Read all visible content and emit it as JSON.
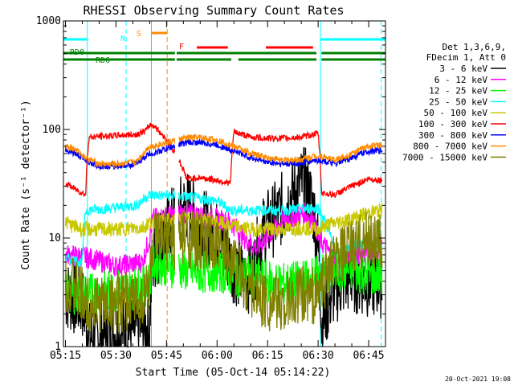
{
  "chart_data": {
    "type": "line",
    "title": "RHESSI Observing Summary Count Rates",
    "xlabel": "Start Time (05-Oct-14 05:14:22)",
    "ylabel": "Count Rate (s⁻¹ detector⁻¹)",
    "x_ticks": [
      "05:15",
      "05:30",
      "05:45",
      "06:00",
      "06:15",
      "06:30",
      "06:45"
    ],
    "x_tick_minutes": [
      15,
      30,
      45,
      60,
      75,
      90,
      105
    ],
    "xlim_minutes": [
      14.4,
      110
    ],
    "y_scale": "log",
    "ylim": [
      1,
      1000
    ],
    "y_ticks": [
      "1",
      "10",
      "100",
      "1000"
    ],
    "legend_header": [
      "Det 1,3,6,9,",
      "FDecim 1, Att 0"
    ],
    "series": [
      {
        "name": "3 - 6 keV",
        "color": "#000000",
        "points": [
          [
            15,
            3
          ],
          [
            20,
            2.5
          ],
          [
            22,
            1.2
          ],
          [
            40,
            1.5
          ],
          [
            41,
            6
          ],
          [
            51,
            20
          ],
          [
            54,
            15
          ],
          [
            57,
            12
          ],
          [
            60,
            10
          ],
          [
            64,
            6
          ],
          [
            68,
            4
          ],
          [
            71,
            5
          ],
          [
            74,
            12
          ],
          [
            78,
            16
          ],
          [
            81,
            22
          ],
          [
            84,
            30
          ],
          [
            86,
            32
          ],
          [
            88,
            22
          ],
          [
            90,
            8
          ],
          [
            91,
            1.5
          ],
          [
            95,
            3.5
          ],
          [
            100,
            4.5
          ],
          [
            105,
            4
          ],
          [
            109,
            4
          ]
        ]
      },
      {
        "name": "6 - 12 keV",
        "color": "#ff00ff",
        "points": [
          [
            15,
            7
          ],
          [
            20,
            6.8
          ],
          [
            30,
            5.5
          ],
          [
            38,
            6
          ],
          [
            40,
            10
          ],
          [
            41,
            15
          ],
          [
            51,
            17
          ],
          [
            55,
            16
          ],
          [
            60,
            15
          ],
          [
            64,
            14
          ],
          [
            68,
            10
          ],
          [
            72,
            8
          ],
          [
            76,
            11
          ],
          [
            80,
            15
          ],
          [
            84,
            16
          ],
          [
            86,
            17
          ],
          [
            89,
            14
          ],
          [
            90,
            10
          ],
          [
            95,
            6
          ],
          [
            100,
            7
          ],
          [
            105,
            7.5
          ],
          [
            109,
            8
          ]
        ]
      },
      {
        "name": "12 - 25 keV",
        "color": "#00ff00",
        "points": [
          [
            15,
            3.2
          ],
          [
            20,
            3
          ],
          [
            30,
            3.3
          ],
          [
            38,
            3.5
          ],
          [
            40,
            4
          ],
          [
            41,
            6
          ],
          [
            51,
            5
          ],
          [
            55,
            4.8
          ],
          [
            60,
            5
          ],
          [
            65,
            4.5
          ],
          [
            70,
            4.5
          ],
          [
            75,
            4
          ],
          [
            80,
            3.8
          ],
          [
            85,
            4
          ],
          [
            90,
            4.5
          ],
          [
            95,
            5
          ],
          [
            100,
            5
          ],
          [
            105,
            4.5
          ],
          [
            109,
            4.5
          ]
        ]
      },
      {
        "name": "25 - 50 keV",
        "color": "#00ffff",
        "points": [
          [
            15,
            6.5
          ],
          [
            20,
            6
          ],
          [
            21,
            18
          ],
          [
            30,
            19
          ],
          [
            36,
            20
          ],
          [
            40,
            25
          ],
          [
            41,
            25
          ],
          [
            51,
            24
          ],
          [
            55,
            23
          ],
          [
            60,
            22
          ],
          [
            64,
            18
          ],
          [
            70,
            18
          ],
          [
            75,
            18
          ],
          [
            80,
            18
          ],
          [
            85,
            18.5
          ],
          [
            90,
            19
          ],
          [
            95,
            7
          ],
          [
            100,
            8.5
          ],
          [
            105,
            9
          ],
          [
            109,
            9
          ]
        ]
      },
      {
        "name": "50 - 100 keV",
        "color": "#c8c800",
        "points": [
          [
            15,
            14
          ],
          [
            17,
            13
          ],
          [
            20,
            12
          ],
          [
            30,
            12
          ],
          [
            38,
            12.5
          ],
          [
            40,
            14
          ],
          [
            41,
            14
          ],
          [
            51,
            15
          ],
          [
            55,
            15
          ],
          [
            60,
            14
          ],
          [
            64,
            13
          ],
          [
            70,
            12
          ],
          [
            75,
            12
          ],
          [
            80,
            12
          ],
          [
            85,
            12.5
          ],
          [
            90,
            12
          ],
          [
            92,
            13
          ],
          [
            96,
            14
          ],
          [
            100,
            15
          ],
          [
            105,
            17
          ],
          [
            109,
            18
          ]
        ]
      },
      {
        "name": "100 - 300 keV",
        "color": "#ff0000",
        "points": [
          [
            15,
            32
          ],
          [
            18,
            28
          ],
          [
            21,
            25
          ],
          [
            22,
            85
          ],
          [
            30,
            88
          ],
          [
            36,
            90
          ],
          [
            39,
            98
          ],
          [
            40,
            110
          ],
          [
            41,
            110
          ],
          [
            51,
            35
          ],
          [
            55,
            36
          ],
          [
            60,
            34
          ],
          [
            64,
            32
          ],
          [
            65,
            95
          ],
          [
            70,
            85
          ],
          [
            75,
            83
          ],
          [
            80,
            83
          ],
          [
            85,
            85
          ],
          [
            90,
            92
          ],
          [
            91,
            26
          ],
          [
            95,
            25
          ],
          [
            100,
            30
          ],
          [
            105,
            35
          ],
          [
            109,
            34
          ]
        ]
      },
      {
        "name": "300 - 800 keV",
        "color": "#0000ff",
        "points": [
          [
            15,
            65
          ],
          [
            18,
            60
          ],
          [
            21,
            52
          ],
          [
            25,
            46
          ],
          [
            30,
            46
          ],
          [
            36,
            48
          ],
          [
            40,
            60
          ],
          [
            41,
            60
          ],
          [
            51,
            76
          ],
          [
            55,
            76
          ],
          [
            60,
            72
          ],
          [
            64,
            65
          ],
          [
            70,
            55
          ],
          [
            75,
            50
          ],
          [
            80,
            48
          ],
          [
            85,
            49
          ],
          [
            89,
            52
          ],
          [
            91,
            52
          ],
          [
            95,
            48
          ],
          [
            100,
            55
          ],
          [
            105,
            63
          ],
          [
            109,
            64
          ]
        ]
      },
      {
        "name": "800 - 7000 keV",
        "color": "#ff8c00",
        "points": [
          [
            15,
            72
          ],
          [
            18,
            65
          ],
          [
            21,
            55
          ],
          [
            25,
            48
          ],
          [
            30,
            48
          ],
          [
            36,
            50
          ],
          [
            40,
            70
          ],
          [
            41,
            70
          ],
          [
            51,
            84
          ],
          [
            55,
            84
          ],
          [
            60,
            80
          ],
          [
            64,
            72
          ],
          [
            70,
            60
          ],
          [
            75,
            55
          ],
          [
            80,
            52
          ],
          [
            85,
            53
          ],
          [
            89,
            57
          ],
          [
            91,
            57
          ],
          [
            95,
            52
          ],
          [
            100,
            60
          ],
          [
            105,
            70
          ],
          [
            109,
            72
          ]
        ]
      },
      {
        "name": "7000 - 15000 keV",
        "color": "#808000",
        "points": [
          [
            15,
            4
          ],
          [
            18,
            3.5
          ],
          [
            21,
            2.5
          ],
          [
            30,
            2.5
          ],
          [
            38,
            2.8
          ],
          [
            40,
            4
          ],
          [
            41,
            9
          ],
          [
            51,
            10
          ],
          [
            55,
            9
          ],
          [
            60,
            8
          ],
          [
            64,
            7
          ],
          [
            68,
            4
          ],
          [
            72,
            3
          ],
          [
            76,
            2.5
          ],
          [
            80,
            2.5
          ],
          [
            85,
            3
          ],
          [
            88,
            3
          ],
          [
            90,
            3
          ],
          [
            95,
            6
          ],
          [
            100,
            8
          ],
          [
            105,
            10
          ],
          [
            109,
            9
          ]
        ]
      }
    ],
    "annotations": [
      {
        "label": "N",
        "color": "#00ffff",
        "bars": [
          [
            14.4,
            21.5,
            6
          ],
          [
            90.7,
            110,
            6
          ]
        ]
      },
      {
        "label": "S",
        "color": "#ff8c00",
        "bars": [
          [
            40.5,
            45.2,
            3
          ]
        ]
      },
      {
        "label": "F",
        "color": "#ff0000",
        "bars": [
          [
            54,
            63.2,
            5
          ],
          [
            74.5,
            88.5,
            5
          ]
        ]
      },
      {
        "label": "RD0",
        "color": "#008000",
        "bars": [
          [
            14.4,
            47.5,
            7
          ],
          [
            48,
            89.5,
            7
          ],
          [
            91,
            110,
            7
          ]
        ]
      },
      {
        "label": "RD6",
        "color": "#008000",
        "bars": [
          [
            14.4,
            47.5,
            8
          ],
          [
            48,
            64.2,
            8
          ],
          [
            66.3,
            89.5,
            8
          ],
          [
            91,
            110,
            8
          ]
        ]
      }
    ],
    "markers": [
      {
        "minute": 21.5,
        "color": "#00ffff",
        "style": "solid"
      },
      {
        "minute": 33,
        "color": "#00ffff",
        "style": "dashed"
      },
      {
        "minute": 40.5,
        "color": "#ff8c00",
        "style": "solid"
      },
      {
        "minute": 45.2,
        "color": "#ff8c00",
        "style": "dashed"
      },
      {
        "minute": 90.7,
        "color": "#00ffff",
        "style": "solid"
      },
      {
        "minute": 108.7,
        "color": "#00ffff",
        "style": "dashed"
      }
    ],
    "gaps": [
      [
        47.5,
        48.5
      ]
    ],
    "grid": false,
    "legend_position": "right"
  },
  "timestamp": "20-Oct-2021 19:08"
}
